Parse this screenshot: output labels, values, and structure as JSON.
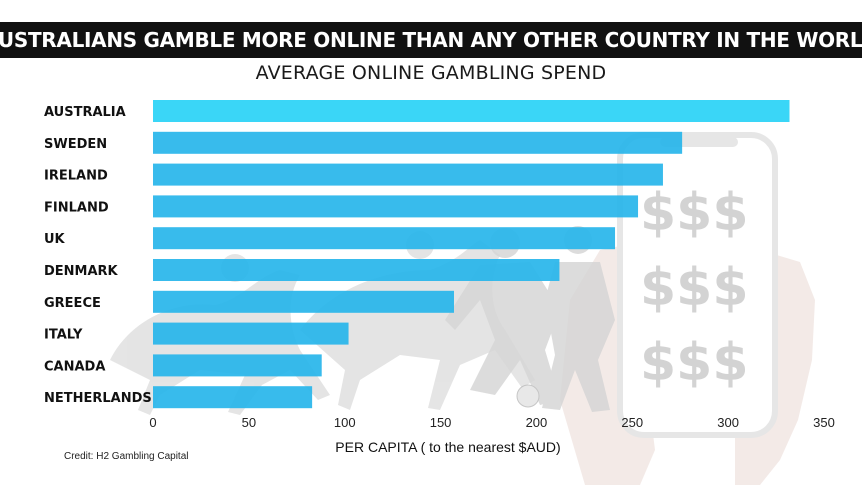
{
  "header": {
    "banner_title": "AUSTRALIANS GAMBLE MORE ONLINE THAN ANY OTHER COUNTRY IN THE WORLD",
    "subtitle": "AVERAGE ONLINE GAMBLING SPEND"
  },
  "credit": "Credit: H2 Gambling Capital",
  "colors": {
    "bar_top": "#29d3f6",
    "bar": "#27b5ea",
    "banner_bg": "#111111",
    "background_art": "#d9d9d9"
  },
  "background_icons": [
    "jockey-horse-silhouette",
    "soccer-player-silhouette",
    "hand-holding-phone",
    "dollar-signs"
  ],
  "chart_data": {
    "type": "bar",
    "orientation": "horizontal",
    "title": "AVERAGE ONLINE GAMBLING SPEND",
    "xlabel": "PER CAPITA ( to the nearest $AUD)",
    "ylabel": "",
    "categories": [
      "AUSTRALIA",
      "SWEDEN",
      "IRELAND",
      "FINLAND",
      "UK",
      "DENMARK",
      "GREECE",
      "ITALY",
      "CANADA",
      "NETHERLANDS"
    ],
    "values": [
      332,
      276,
      266,
      253,
      241,
      212,
      157,
      102,
      88,
      83
    ],
    "xlim": [
      0,
      350
    ],
    "xticks": [
      "0",
      "50",
      "100",
      "150",
      "200",
      "250",
      "300",
      "350"
    ],
    "grid": false,
    "legend": "none"
  }
}
